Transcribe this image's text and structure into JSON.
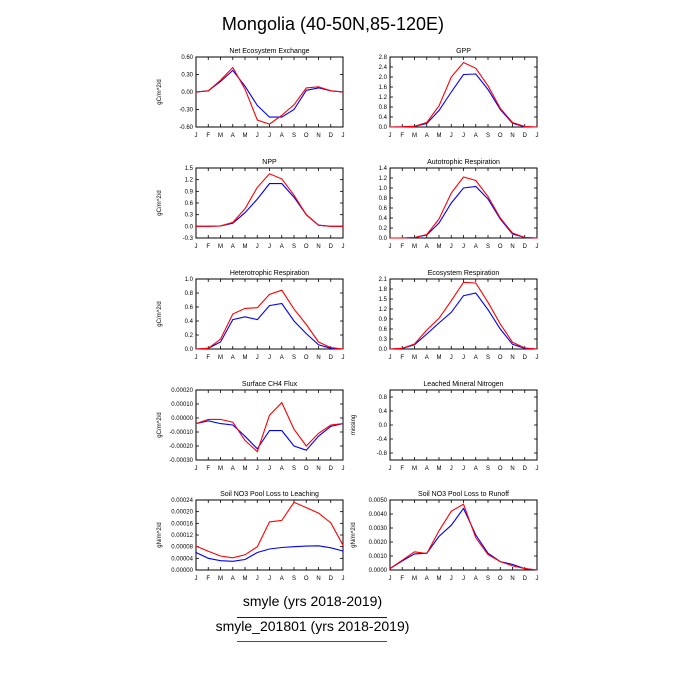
{
  "title": "Mongolia (40-50N,85-120E)",
  "legend": [
    {
      "name": "smyle (yrs 2018-2019)",
      "color": "#0000ff"
    },
    {
      "name": "smyle_201801 (yrs 2018-2019)",
      "color": "#ff0000"
    }
  ],
  "chart_data": [
    {
      "type": "line",
      "title": "Net Ecosystem Exchange",
      "ylabel": "gC/m^2/d",
      "categories": [
        "J",
        "F",
        "M",
        "A",
        "M",
        "J",
        "J",
        "A",
        "S",
        "O",
        "N",
        "D",
        "J"
      ],
      "ylim": [
        -0.6,
        0.6
      ],
      "yticks": [
        "0.60",
        "0.30",
        "0.00",
        "-0.30",
        "-0.60"
      ],
      "series": [
        {
          "color": "#0000ff",
          "values": [
            0.0,
            0.02,
            0.18,
            0.37,
            0.1,
            -0.23,
            -0.43,
            -0.43,
            -0.3,
            0.03,
            0.07,
            0.02,
            0.0
          ]
        },
        {
          "color": "#ff0000",
          "values": [
            0.0,
            0.02,
            0.2,
            0.42,
            0.05,
            -0.48,
            -0.55,
            -0.4,
            -0.22,
            0.07,
            0.09,
            0.02,
            0.0
          ]
        }
      ]
    },
    {
      "type": "line",
      "title": "GPP",
      "ylabel": "",
      "categories": [
        "J",
        "F",
        "M",
        "A",
        "M",
        "J",
        "J",
        "A",
        "S",
        "O",
        "N",
        "D",
        "J"
      ],
      "ylim": [
        0,
        2.8
      ],
      "yticks": [
        "2.8",
        "2.4",
        "2.0",
        "1.6",
        "1.2",
        "0.8",
        "0.4",
        "0.0"
      ],
      "series": [
        {
          "color": "#0000ff",
          "values": [
            0.0,
            0.01,
            0.03,
            0.14,
            0.66,
            1.4,
            2.1,
            2.12,
            1.5,
            0.7,
            0.15,
            0.01,
            0.0
          ]
        },
        {
          "color": "#ff0000",
          "values": [
            0.0,
            0.01,
            0.03,
            0.18,
            0.85,
            2.0,
            2.58,
            2.35,
            1.65,
            0.75,
            0.18,
            0.02,
            0.0
          ]
        }
      ]
    },
    {
      "type": "line",
      "title": "NPP",
      "ylabel": "gC/m^2/d",
      "categories": [
        "J",
        "F",
        "M",
        "A",
        "M",
        "J",
        "J",
        "A",
        "S",
        "O",
        "N",
        "D",
        "J"
      ],
      "ylim": [
        -0.3,
        1.5
      ],
      "yticks": [
        "1.5",
        "1.2",
        "0.9",
        "0.6",
        "0.3",
        "0.0",
        "-0.3"
      ],
      "series": [
        {
          "color": "#0000ff",
          "values": [
            0.0,
            0.0,
            0.01,
            0.08,
            0.35,
            0.7,
            1.1,
            1.1,
            0.75,
            0.3,
            0.03,
            0.0,
            0.0
          ]
        },
        {
          "color": "#ff0000",
          "values": [
            0.0,
            0.0,
            0.01,
            0.1,
            0.45,
            1.0,
            1.35,
            1.22,
            0.8,
            0.3,
            0.03,
            0.0,
            0.0
          ]
        }
      ]
    },
    {
      "type": "line",
      "title": "Autotrophic Respiration",
      "ylabel": "",
      "categories": [
        "J",
        "F",
        "M",
        "A",
        "M",
        "J",
        "J",
        "A",
        "S",
        "O",
        "N",
        "D",
        "J"
      ],
      "ylim": [
        0,
        1.4
      ],
      "yticks": [
        "1.4",
        "1.2",
        "1.0",
        "0.8",
        "0.6",
        "0.4",
        "0.2",
        "0.0"
      ],
      "series": [
        {
          "color": "#0000ff",
          "values": [
            0.0,
            0.0,
            0.01,
            0.06,
            0.3,
            0.7,
            1.0,
            1.03,
            0.78,
            0.38,
            0.08,
            0.01,
            0.0
          ]
        },
        {
          "color": "#ff0000",
          "values": [
            0.0,
            0.0,
            0.01,
            0.07,
            0.38,
            0.9,
            1.22,
            1.15,
            0.83,
            0.4,
            0.1,
            0.01,
            0.0
          ]
        }
      ]
    },
    {
      "type": "line",
      "title": "Heterotrophic Respiration",
      "ylabel": "gC/m^2/d",
      "categories": [
        "J",
        "F",
        "M",
        "A",
        "M",
        "J",
        "J",
        "A",
        "S",
        "O",
        "N",
        "D",
        "J"
      ],
      "ylim": [
        0,
        1.0
      ],
      "yticks": [
        "1.0",
        "0.8",
        "0.6",
        "0.4",
        "0.2",
        "0.0"
      ],
      "series": [
        {
          "color": "#0000ff",
          "values": [
            0.0,
            0.01,
            0.1,
            0.42,
            0.46,
            0.42,
            0.62,
            0.65,
            0.4,
            0.22,
            0.06,
            0.01,
            0.0
          ]
        },
        {
          "color": "#ff0000",
          "values": [
            0.0,
            0.01,
            0.14,
            0.5,
            0.58,
            0.59,
            0.78,
            0.84,
            0.57,
            0.35,
            0.1,
            0.02,
            0.0
          ]
        }
      ]
    },
    {
      "type": "line",
      "title": "Ecosystem Respiration",
      "ylabel": "",
      "categories": [
        "J",
        "F",
        "M",
        "A",
        "M",
        "J",
        "J",
        "A",
        "S",
        "O",
        "N",
        "D",
        "J"
      ],
      "ylim": [
        0,
        2.1
      ],
      "yticks": [
        "2.1",
        "1.8",
        "1.5",
        "1.2",
        "0.9",
        "0.6",
        "0.3",
        "0.0"
      ],
      "series": [
        {
          "color": "#0000ff",
          "values": [
            0.0,
            0.02,
            0.13,
            0.45,
            0.78,
            1.1,
            1.6,
            1.68,
            1.18,
            0.6,
            0.14,
            0.02,
            0.0
          ]
        },
        {
          "color": "#ff0000",
          "values": [
            0.0,
            0.02,
            0.15,
            0.57,
            0.92,
            1.45,
            2.0,
            1.98,
            1.4,
            0.75,
            0.2,
            0.03,
            0.0
          ]
        }
      ]
    },
    {
      "type": "line",
      "title": "Surface CH4 Flux",
      "ylabel": "gC/m^2/d",
      "categories": [
        "J",
        "F",
        "M",
        "A",
        "M",
        "J",
        "J",
        "A",
        "S",
        "O",
        "N",
        "D",
        "J"
      ],
      "ylim": [
        -0.0003,
        0.0002
      ],
      "yticks": [
        "0.00020",
        "0.00010",
        "0.00000",
        "-0.00010",
        "-0.00020",
        "-0.00030"
      ],
      "series": [
        {
          "color": "#0000ff",
          "values": [
            -4e-05,
            -2e-05,
            -4e-05,
            -5e-05,
            -0.00013,
            -0.00022,
            -9e-05,
            -9e-05,
            -0.0002,
            -0.00023,
            -0.00013,
            -6e-05,
            -4e-05
          ]
        },
        {
          "color": "#ff0000",
          "values": [
            -4e-05,
            -1e-05,
            -1e-05,
            -3e-05,
            -0.00016,
            -0.00024,
            2e-05,
            0.00011,
            -8e-05,
            -0.0002,
            -0.00011,
            -5e-05,
            -4e-05
          ]
        }
      ]
    },
    {
      "type": "line",
      "title": "Leached Mineral Nitrogen",
      "ylabel": "missing",
      "categories": [
        "J",
        "F",
        "M",
        "A",
        "M",
        "J",
        "J",
        "A",
        "S",
        "O",
        "N",
        "D",
        "J"
      ],
      "ylim": [
        -1.0,
        1.0
      ],
      "yticks": [
        "0.8",
        "0.4",
        "0.0",
        "-0.4",
        "-0.8"
      ],
      "series": []
    },
    {
      "type": "line",
      "title": "Soil NO3 Pool Loss to Leaching",
      "ylabel": "gN/m^2/d",
      "categories": [
        "J",
        "F",
        "M",
        "A",
        "M",
        "J",
        "J",
        "A",
        "S",
        "O",
        "N",
        "D",
        "J"
      ],
      "ylim": [
        0,
        0.00024
      ],
      "yticks": [
        "0.00024",
        "0.00020",
        "0.00016",
        "0.00012",
        "0.00008",
        "0.00004",
        "0.00000"
      ],
      "series": [
        {
          "color": "#0000ff",
          "values": [
            6e-05,
            4e-05,
            3.2e-05,
            3e-05,
            3.6e-05,
            6e-05,
            7.2e-05,
            7.7e-05,
            8e-05,
            8.2e-05,
            8.3e-05,
            7.6e-05,
            6.5e-05
          ]
        },
        {
          "color": "#ff0000",
          "values": [
            8.2e-05,
            6.4e-05,
            4.8e-05,
            4.2e-05,
            5.2e-05,
            8e-05,
            0.000165,
            0.00017,
            0.000232,
            0.000214,
            0.000195,
            0.000162,
            8.5e-05
          ]
        }
      ]
    },
    {
      "type": "line",
      "title": "Soil NO3 Pool Loss to Runoff",
      "ylabel": "gN/m^2/d",
      "categories": [
        "J",
        "F",
        "M",
        "A",
        "M",
        "J",
        "J",
        "A",
        "S",
        "O",
        "N",
        "D",
        "J"
      ],
      "ylim": [
        0,
        0.005
      ],
      "yticks": [
        "0.0050",
        "0.0040",
        "0.0030",
        "0.0020",
        "0.0010",
        "0.0000"
      ],
      "series": [
        {
          "color": "#0000ff",
          "values": [
            0.0001,
            0.00065,
            0.00115,
            0.0012,
            0.0024,
            0.0032,
            0.0044,
            0.0025,
            0.0012,
            0.0006,
            0.0004,
            0.0001,
            0.0
          ]
        },
        {
          "color": "#ff0000",
          "values": [
            0.0001,
            0.0007,
            0.0013,
            0.00118,
            0.0028,
            0.0042,
            0.0047,
            0.0023,
            0.0011,
            0.0006,
            0.0003,
            0.0001,
            0.0
          ]
        }
      ]
    }
  ]
}
